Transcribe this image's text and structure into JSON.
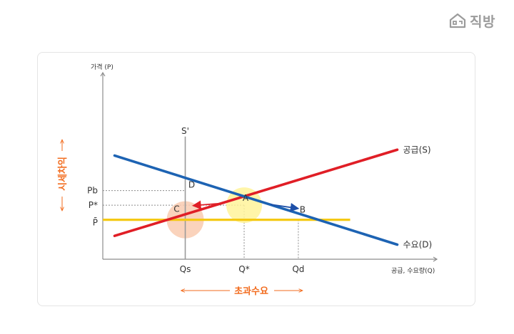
{
  "brand": {
    "name": "직방",
    "icon": "house-icon"
  },
  "chart_data": {
    "type": "line",
    "ylabel": "가격 (P)",
    "xlabel": "공급, 수요량(Q)",
    "y_ticks": [
      "Pb",
      "P*",
      "P̄"
    ],
    "x_ticks": [
      "Qs",
      "Q*",
      "Qd"
    ],
    "series": [
      {
        "name": "공급(S)",
        "color": "#e01e26",
        "points": [
          [
            0.5,
            1.6
          ],
          [
            12.5,
            7.5
          ]
        ]
      },
      {
        "name": "수요(D)",
        "color": "#1d63b3",
        "points": [
          [
            0.5,
            7.1
          ],
          [
            12.5,
            1.0
          ]
        ]
      },
      {
        "name": "S'",
        "color": "#9a9a9a",
        "points": [
          [
            3.5,
            0
          ],
          [
            3.5,
            8.4
          ]
        ]
      },
      {
        "name": "P̄",
        "color": "#f5c915",
        "points": [
          [
            0,
            2.7
          ],
          [
            10.5,
            2.7
          ]
        ]
      }
    ],
    "points": [
      {
        "label": "A",
        "x": 6.0,
        "y": 3.7
      },
      {
        "label": "B",
        "x": 8.3,
        "y": 2.7
      },
      {
        "label": "C",
        "x": 3.5,
        "y": 2.7
      },
      {
        "label": "D",
        "x": 3.5,
        "y": 4.7
      }
    ],
    "annotations": {
      "price_control": "시세차익",
      "excess_demand": "초과수요"
    },
    "colors": {
      "axis": "#8c8c8c",
      "accent": "#f26b1d",
      "circle_a": "#fff39a",
      "circle_c": "#f9cbb0",
      "arrow_left": "#e01e26",
      "arrow_right": "#1d4fa8"
    }
  }
}
